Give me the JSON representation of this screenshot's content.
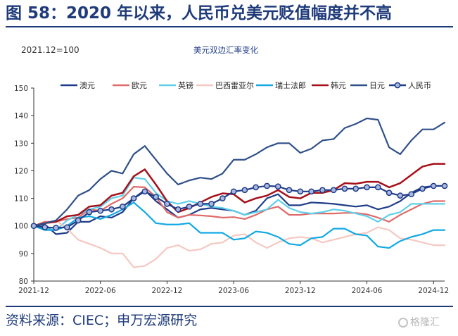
{
  "header": {
    "title": "图 58：2020 年以来，人民币兑美元贬值幅度并不高"
  },
  "footer": {
    "source": "资料来源：CIEC；申万宏源研究",
    "watermark": "格隆汇"
  },
  "chart_data": {
    "type": "line",
    "title": "美元双边汇率变化",
    "note": "2021.12=100",
    "xlabel": "",
    "ylabel": "",
    "ylim": [
      80,
      150
    ],
    "yticks": [
      80,
      90,
      100,
      110,
      120,
      130,
      140,
      150
    ],
    "xticks": [
      "2021-12",
      "2022-06",
      "2022-12",
      "2023-06",
      "2023-12",
      "2024-06",
      "2024-12"
    ],
    "grid": false,
    "legend_position": "top",
    "x": [
      "2021-12",
      "2022-01",
      "2022-02",
      "2022-03",
      "2022-04",
      "2022-05",
      "2022-06",
      "2022-07",
      "2022-08",
      "2022-09",
      "2022-10",
      "2022-11",
      "2022-12",
      "2023-01",
      "2023-02",
      "2023-03",
      "2023-04",
      "2023-05",
      "2023-06",
      "2023-07",
      "2023-08",
      "2023-09",
      "2023-10",
      "2023-11",
      "2023-12",
      "2024-01",
      "2024-02",
      "2024-03",
      "2024-04",
      "2024-05",
      "2024-06",
      "2024-07",
      "2024-08",
      "2024-09",
      "2024-10",
      "2024-11",
      "2024-12",
      "2025-01"
    ],
    "series": [
      {
        "name": "澳元",
        "color": "#1f3c88",
        "width": 2.2,
        "markers": false,
        "values": [
          100,
          100.5,
          97,
          97.5,
          101.5,
          101.5,
          103.5,
          103,
          105,
          110,
          113,
          109,
          106,
          103,
          104,
          106,
          106.5,
          106,
          105.5,
          104,
          105.5,
          110,
          111.5,
          107.5,
          107.5,
          108.5,
          108.3,
          108,
          107.5,
          107,
          107.5,
          106,
          107,
          109,
          112,
          114,
          114.5,
          114.5
        ]
      },
      {
        "name": "欧元",
        "color": "#e06a6a",
        "width": 2.2,
        "markers": false,
        "values": [
          100,
          101.5,
          101.5,
          102.5,
          103,
          106,
          105.5,
          108,
          110,
          114.2,
          114,
          110.5,
          105,
          103,
          104,
          103.8,
          103.5,
          103,
          103.2,
          102.5,
          104,
          106,
          107,
          104,
          104,
          104.5,
          104.5,
          104.5,
          104.7,
          104.7,
          104.2,
          103,
          101.5,
          104,
          106,
          108,
          109,
          109
        ]
      },
      {
        "name": "英镑",
        "color": "#5fd0ea",
        "width": 2.2,
        "markers": false,
        "values": [
          100,
          99,
          98.5,
          102,
          104,
          106,
          107,
          110,
          111,
          117.5,
          117,
          112,
          109,
          108,
          109,
          108,
          107,
          106.5,
          105.5,
          104,
          105,
          106,
          109.5,
          106.5,
          105,
          104.5,
          105,
          106,
          105.5,
          104.5,
          103.5,
          101.5,
          104,
          105,
          108,
          108,
          108,
          108
        ]
      },
      {
        "name": "巴西雷亚尔",
        "color": "#f5c8c2",
        "width": 2.2,
        "markers": false,
        "values": [
          100,
          101,
          102,
          99,
          95,
          93.5,
          92,
          90,
          90,
          85,
          85.5,
          88,
          92,
          93,
          91,
          91.5,
          93.5,
          94,
          96.5,
          97,
          94,
          92,
          94,
          95.5,
          96,
          95.5,
          94,
          95,
          96,
          97,
          97.5,
          99.5,
          98.5,
          95.5,
          95,
          94,
          93,
          93
        ]
      },
      {
        "name": "瑞士法郎",
        "color": "#12a9e3",
        "width": 2.2,
        "markers": false,
        "values": [
          100,
          98.5,
          98.5,
          100,
          103,
          103.5,
          102.5,
          104,
          106,
          108.5,
          105,
          101,
          100.5,
          100.5,
          101,
          97.5,
          97.5,
          97.5,
          95,
          95.5,
          98,
          97.5,
          96,
          93.5,
          93,
          95.5,
          96,
          99,
          99,
          97,
          96.5,
          92.5,
          92,
          94.5,
          96,
          97,
          98.5,
          98.5
        ]
      },
      {
        "name": "韩元",
        "color": "#a6101a",
        "width": 2.5,
        "markers": false,
        "values": [
          100,
          101,
          101.5,
          103.5,
          104,
          107,
          107.5,
          111,
          112,
          118,
          120.5,
          115,
          109,
          105,
          106.5,
          108.5,
          110.5,
          111.8,
          111.5,
          108.5,
          110,
          111,
          113,
          110.5,
          110,
          112,
          112,
          113,
          115.5,
          115.3,
          116,
          116,
          114,
          115.5,
          118.5,
          121.5,
          122.5,
          122.5
        ]
      },
      {
        "name": "日元",
        "color": "#2f5089",
        "width": 2.2,
        "markers": false,
        "values": [
          100,
          101,
          102,
          106,
          111,
          113,
          117,
          120,
          119,
          126,
          129,
          124,
          119,
          115,
          116.5,
          117.5,
          117,
          119,
          124,
          124,
          126,
          128.5,
          130,
          130,
          126.5,
          128,
          131,
          131.5,
          135.5,
          137,
          139,
          138.5,
          128.5,
          126,
          131,
          135,
          135,
          137.5
        ]
      },
      {
        "name": "人民币",
        "color": "#1f3c88",
        "width": 2.2,
        "markers": true,
        "values": [
          100,
          99.5,
          99.3,
          99.5,
          102,
          105,
          105.5,
          106,
          107,
          110,
          112.5,
          110.5,
          108,
          106,
          107,
          108,
          108,
          110,
          112.5,
          113,
          114,
          114.5,
          114.3,
          113,
          112.5,
          112.5,
          113,
          113,
          113.5,
          113.5,
          114,
          114,
          112,
          111,
          111.5,
          113.5,
          114.5,
          114.5
        ]
      }
    ]
  }
}
